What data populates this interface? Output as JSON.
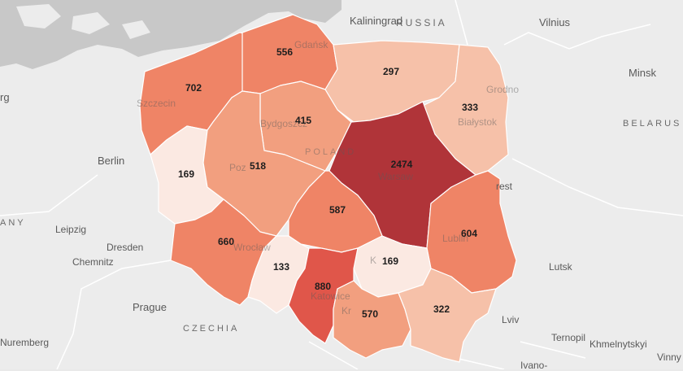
{
  "map": {
    "colors": {
      "land": "#ececec",
      "water": "#c8c8c8",
      "border": "#ffffff",
      "c1": "#fbe9e2",
      "c2": "#f6c1a9",
      "c3": "#f29f7f",
      "c4": "#ef8466",
      "c5": "#e0564a",
      "c6": "#b03439"
    },
    "places": {
      "kaliningrad": "Kaliningrad",
      "russia": "RUSSIA",
      "vilnius": "Vilnius",
      "minsk": "Minsk",
      "belarus": "BELARUS",
      "hamburg_part": "rg",
      "berlin": "Berlin",
      "germany_part": "ANY",
      "leipzig": "Leipzig",
      "dresden": "Dresden",
      "chemnitz": "Chemnitz",
      "prague": "Prague",
      "czechia": "CZECHIA",
      "nuremberg": "Nuremberg",
      "lutsk": "Lutsk",
      "lviv": "Lviv",
      "ternopil": "Ternopil",
      "khmelnytskyi": "Khmelnytskyi",
      "vinny": "Vinny",
      "ivano": "Ivano-",
      "brest_part": "rest",
      "poland": "POLAND",
      "gdansk": "Gdańsk",
      "szczecin": "Szczecin",
      "bydgoszcz": "Bydgoszcz",
      "poznan_part": "Poz",
      "warsaw": "Warsaw",
      "grodno": "Grodno",
      "bialystok": "Białystok",
      "wroclaw": "Wrocław",
      "katowice": "Katowice",
      "krakow_part": "Kr",
      "kielce_part": "K",
      "lublin": "Lublin"
    },
    "regions": [
      {
        "id": "zachodniopomorskie",
        "value": "702"
      },
      {
        "id": "pomorskie",
        "value": "556"
      },
      {
        "id": "warminsko-mazurskie",
        "value": "297"
      },
      {
        "id": "podlaskie",
        "value": "333"
      },
      {
        "id": "kujawsko-pomorskie",
        "value": "415"
      },
      {
        "id": "lubuskie",
        "value": "169"
      },
      {
        "id": "wielkopolskie",
        "value": "518"
      },
      {
        "id": "mazowieckie",
        "value": "2474"
      },
      {
        "id": "lodzkie",
        "value": "587"
      },
      {
        "id": "lubelskie",
        "value": "604"
      },
      {
        "id": "dolnoslaskie",
        "value": "660"
      },
      {
        "id": "opolskie",
        "value": "133"
      },
      {
        "id": "swietokrzyskie",
        "value": "169"
      },
      {
        "id": "slaskie",
        "value": "880"
      },
      {
        "id": "malopolskie",
        "value": "570"
      },
      {
        "id": "podkarpackie",
        "value": "322"
      }
    ]
  }
}
